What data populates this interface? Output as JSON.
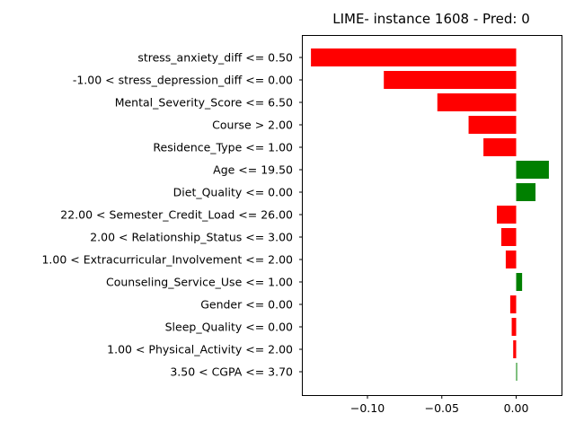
{
  "chart_data": {
    "type": "bar",
    "orientation": "horizontal",
    "title": "LIME- instance 1608 - Pred: 0",
    "xlabel": "",
    "ylabel": "",
    "xlim": [
      -0.1435,
      0.0305
    ],
    "xticks": [
      -0.1,
      -0.05,
      0.0
    ],
    "xtick_labels": [
      "−0.10",
      "−0.05",
      "0.00"
    ],
    "grid": false,
    "positive_color": "#008000",
    "negative_color": "#ff0000",
    "categories": [
      "stress_anxiety_diff <= 0.50",
      "-1.00 < stress_depression_diff <= 0.00",
      "Mental_Severity_Score <= 6.50",
      "Course > 2.00",
      "Residence_Type <= 1.00",
      "Age <= 19.50",
      "Diet_Quality <= 0.00",
      "22.00 < Semester_Credit_Load <= 26.00",
      "2.00 < Relationship_Status <= 3.00",
      "1.00 < Extracurricular_Involvement <= 2.00",
      "Counseling_Service_Use <= 1.00",
      "Gender <= 0.00",
      "Sleep_Quality <= 0.00",
      "1.00 < Physical_Activity <= 2.00",
      "3.50 < CGPA <= 3.70"
    ],
    "values": [
      -0.138,
      -0.089,
      -0.053,
      -0.032,
      -0.022,
      0.022,
      0.013,
      -0.013,
      -0.01,
      -0.007,
      0.004,
      -0.004,
      -0.003,
      -0.002,
      0.0005
    ]
  }
}
